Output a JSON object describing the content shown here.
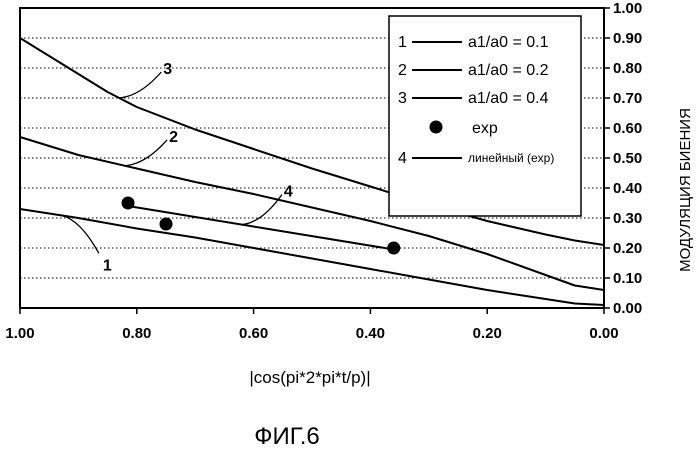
{
  "chart_data": {
    "type": "line",
    "title": "",
    "xlabel": "|cos(pi*2*pi*t/p)|",
    "ylabel": "МОДУЛЯЦИЯ БИЕНИЯ",
    "figure_caption": "ФИГ.6",
    "xlim": [
      1.0,
      0.0
    ],
    "ylim": [
      0.0,
      1.0
    ],
    "x_reversed": true,
    "y_axis_position": "right",
    "grid": "horizontal-dotted",
    "legend_position": "top-right",
    "xticks": [
      "1.00",
      "0.80",
      "0.60",
      "0.40",
      "0.20",
      "0.00"
    ],
    "yticks": [
      "0.00",
      "0.10",
      "0.20",
      "0.30",
      "0.40",
      "0.50",
      "0.60",
      "0.70",
      "0.80",
      "0.90",
      "1.00"
    ],
    "series": [
      {
        "name": "a1/a0 = 0.1",
        "legend_number": "1",
        "kind": "line",
        "x": [
          1.0,
          0.9,
          0.8,
          0.7,
          0.6,
          0.5,
          0.4,
          0.3,
          0.2,
          0.1,
          0.05,
          0.0
        ],
        "y": [
          0.33,
          0.3,
          0.265,
          0.235,
          0.2,
          0.165,
          0.13,
          0.095,
          0.06,
          0.03,
          0.015,
          0.01
        ]
      },
      {
        "name": "a1/a0 = 0.2",
        "legend_number": "2",
        "kind": "line",
        "x": [
          1.0,
          0.9,
          0.8,
          0.7,
          0.6,
          0.5,
          0.4,
          0.3,
          0.2,
          0.1,
          0.05,
          0.0
        ],
        "y": [
          0.57,
          0.51,
          0.465,
          0.42,
          0.38,
          0.335,
          0.29,
          0.24,
          0.18,
          0.11,
          0.075,
          0.06
        ]
      },
      {
        "name": "a1/a0 = 0.4",
        "legend_number": "3",
        "kind": "line",
        "x": [
          1.0,
          0.95,
          0.9,
          0.85,
          0.8,
          0.7,
          0.6,
          0.5,
          0.4,
          0.3,
          0.2,
          0.1,
          0.05,
          0.0
        ],
        "y": [
          0.9,
          0.84,
          0.78,
          0.72,
          0.67,
          0.595,
          0.53,
          0.465,
          0.405,
          0.345,
          0.29,
          0.245,
          0.225,
          0.21
        ]
      },
      {
        "name": "exp",
        "kind": "scatter",
        "x": [
          0.815,
          0.75,
          0.36
        ],
        "y": [
          0.35,
          0.28,
          0.2
        ]
      },
      {
        "name": "линейный (exp)",
        "legend_number": "4",
        "kind": "line",
        "x": [
          0.815,
          0.36
        ],
        "y": [
          0.34,
          0.195
        ]
      }
    ],
    "annotations": [
      {
        "text": "1",
        "series": "a1/a0 = 0.1"
      },
      {
        "text": "2",
        "series": "a1/a0 = 0.2"
      },
      {
        "text": "3",
        "series": "a1/a0 = 0.4"
      },
      {
        "text": "4",
        "series": "линейный (exp)"
      }
    ]
  }
}
